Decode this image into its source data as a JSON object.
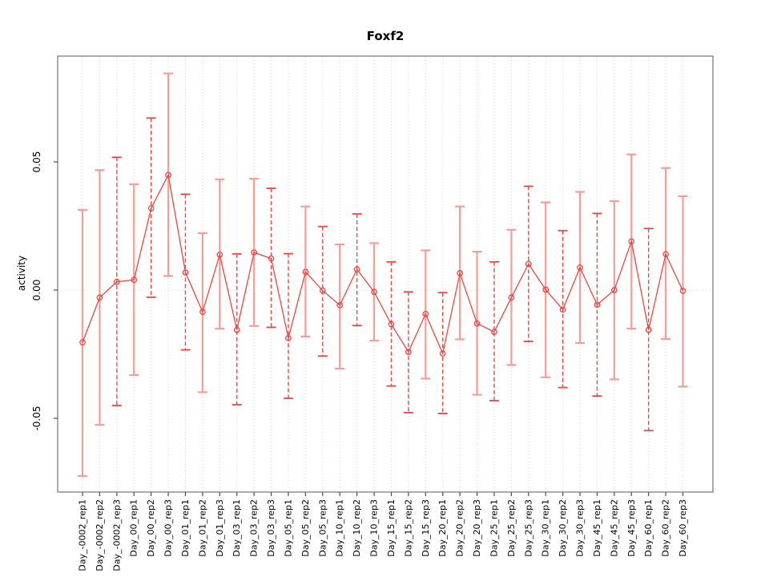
{
  "title": "Foxf2",
  "axes": {
    "y_label": "activity",
    "y_ticks": [
      {
        "label": "0.05",
        "value": 0.05
      },
      {
        "label": "0.00",
        "value": 0.0
      },
      {
        "label": "-0.05",
        "value": -0.05
      }
    ]
  },
  "colors": {
    "point_line": "#ee4540",
    "bar_solid": "#f79d96",
    "bar_dashed": "#ee4540",
    "grid": "#d4d4d4",
    "zero_line": "#dedede",
    "frame": "#737373",
    "tick": "#4d4d4d",
    "text": "#000000"
  },
  "chart_data": {
    "type": "line",
    "subtype": "means-with-error-bars",
    "title": "Foxf2",
    "xlabel": "",
    "ylabel": "activity",
    "ylim": [
      -0.079,
      0.091
    ],
    "y_ticks": [
      0.05,
      0.0,
      -0.05
    ],
    "grid": "vertical-dotted-plus-zero-line",
    "legend_position": "none",
    "categories": [
      "Day_-0002_rep1",
      "Day_-0002_rep2",
      "Day_-0002_rep3",
      "Day_00_rep1",
      "Day_00_rep2",
      "Day_00_rep3",
      "Day_01_rep1",
      "Day_01_rep2",
      "Day_01_rep3",
      "Day_03_rep1",
      "Day_03_rep2",
      "Day_03_rep3",
      "Day_05_rep1",
      "Day_05_rep2",
      "Day_05_rep3",
      "Day_10_rep1",
      "Day_10_rep2",
      "Day_10_rep3",
      "Day_15_rep1",
      "Day_15_rep2",
      "Day_15_rep3",
      "Day_20_rep1",
      "Day_20_rep2",
      "Day_20_rep3",
      "Day_25_rep1",
      "Day_25_rep2",
      "Day_25_rep3",
      "Day_30_rep1",
      "Day_30_rep2",
      "Day_30_rep3",
      "Day_45_rep1",
      "Day_45_rep2",
      "Day_45_rep3",
      "Day_60_rep1",
      "Day_60_rep2",
      "Day_60_rep3"
    ],
    "series": [
      {
        "name": "mean",
        "values": [
          -0.0204,
          -0.0029,
          0.0032,
          0.004,
          0.0319,
          0.0449,
          0.0069,
          -0.0085,
          0.0138,
          -0.0155,
          0.0147,
          0.0123,
          -0.0187,
          0.0071,
          -0.0002,
          -0.0059,
          0.0081,
          -0.0007,
          -0.0133,
          -0.0241,
          -0.0093,
          -0.0247,
          0.0066,
          -0.013,
          -0.0163,
          -0.0029,
          0.0102,
          0.0002,
          -0.0076,
          0.0088,
          -0.0057,
          0.0,
          0.019,
          -0.0155,
          0.014,
          -0.0003
        ]
      },
      {
        "name": "upper",
        "values": [
          0.0313,
          0.0468,
          0.0518,
          0.0413,
          0.0671,
          0.0845,
          0.0374,
          0.0222,
          0.0432,
          0.0141,
          0.0434,
          0.0397,
          0.0142,
          0.0326,
          0.0248,
          0.0178,
          0.0297,
          0.0183,
          0.011,
          -0.0007,
          0.0155,
          -0.001,
          0.0326,
          0.015,
          0.011,
          0.0235,
          0.0405,
          0.0342,
          0.0232,
          0.0383,
          0.0299,
          0.0347,
          0.0529,
          0.024,
          0.0476,
          0.0366
        ]
      },
      {
        "name": "lower",
        "values": [
          -0.0725,
          -0.0525,
          -0.045,
          -0.0331,
          -0.0028,
          0.0055,
          -0.0233,
          -0.0398,
          -0.015,
          -0.0447,
          -0.014,
          -0.0145,
          -0.0422,
          -0.0181,
          -0.0257,
          -0.0306,
          -0.0138,
          -0.0197,
          -0.0374,
          -0.0478,
          -0.0345,
          -0.0481,
          -0.0192,
          -0.0408,
          -0.0431,
          -0.0292,
          -0.02,
          -0.034,
          -0.038,
          -0.0206,
          -0.0413,
          -0.0348,
          -0.015,
          -0.0548,
          -0.0191,
          -0.0376
        ]
      }
    ],
    "bar_line_styles": [
      "s",
      "s",
      "d",
      "s",
      "d",
      "s",
      "d",
      "s",
      "s",
      "d",
      "s",
      "d",
      "d",
      "s",
      "d",
      "s",
      "d",
      "s",
      "d",
      "d",
      "s",
      "d",
      "s",
      "s",
      "d",
      "s",
      "d",
      "s",
      "d",
      "s",
      "d",
      "s",
      "s",
      "d",
      "s",
      "s"
    ]
  }
}
